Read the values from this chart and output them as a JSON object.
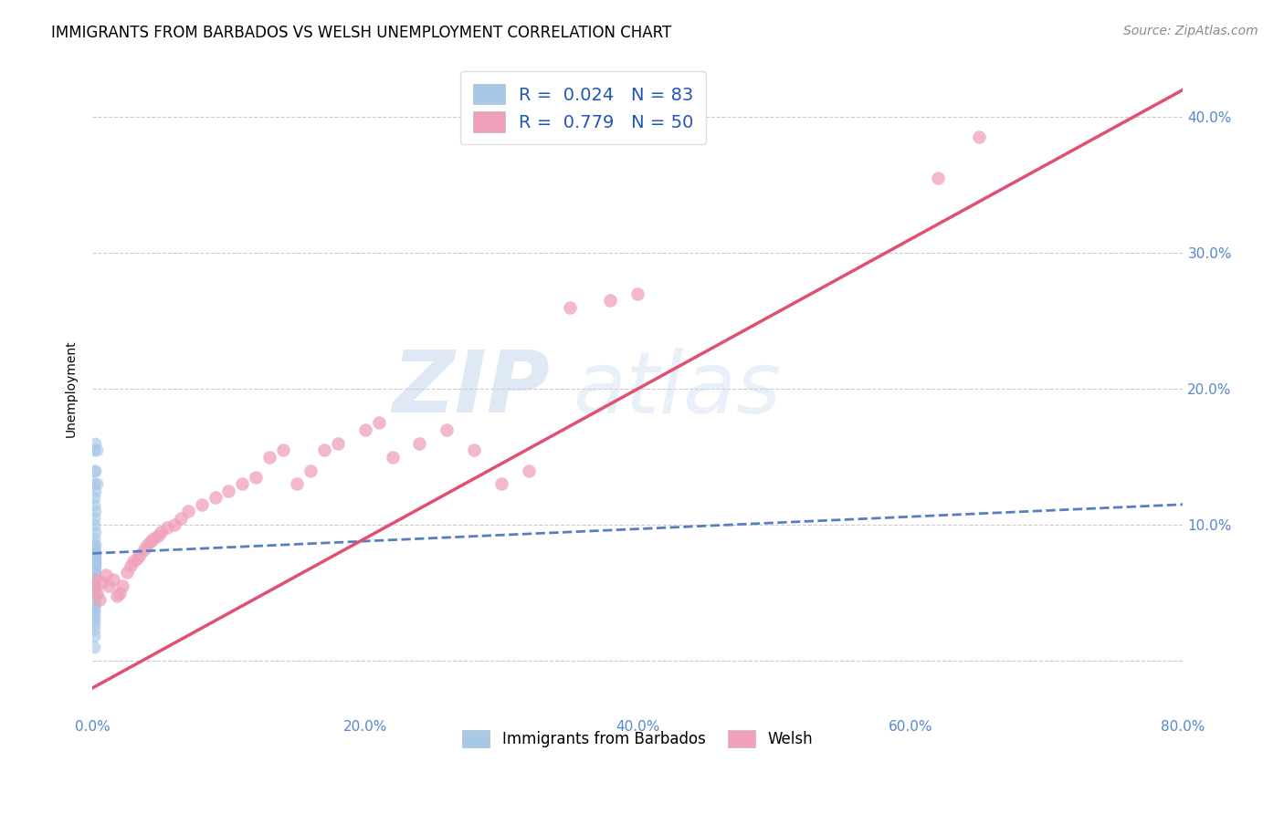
{
  "title": "IMMIGRANTS FROM BARBADOS VS WELSH UNEMPLOYMENT CORRELATION CHART",
  "source": "Source: ZipAtlas.com",
  "ylabel": "Unemployment",
  "watermark_zip": "ZIP",
  "watermark_atlas": "atlas",
  "legend": {
    "blue_R": "0.024",
    "blue_N": "83",
    "pink_R": "0.779",
    "pink_N": "50"
  },
  "legend_labels": [
    "Immigrants from Barbados",
    "Welsh"
  ],
  "blue_color": "#a8c8e8",
  "pink_color": "#f0a0b8",
  "blue_line_color": "#5580c0",
  "pink_line_color": "#e05070",
  "blue_scatter_x": [
    0.001,
    0.002,
    0.003,
    0.001,
    0.002,
    0.001,
    0.003,
    0.002,
    0.001,
    0.001,
    0.002,
    0.001,
    0.001,
    0.002,
    0.001,
    0.001,
    0.002,
    0.001,
    0.001,
    0.001,
    0.002,
    0.001,
    0.001,
    0.002,
    0.001,
    0.001,
    0.002,
    0.001,
    0.001,
    0.001,
    0.002,
    0.001,
    0.001,
    0.001,
    0.001,
    0.002,
    0.001,
    0.001,
    0.001,
    0.001,
    0.001,
    0.001,
    0.001,
    0.001,
    0.002,
    0.001,
    0.001,
    0.001,
    0.001,
    0.001,
    0.001,
    0.001,
    0.001,
    0.001,
    0.001,
    0.001,
    0.001,
    0.001,
    0.001,
    0.001,
    0.001,
    0.001,
    0.001,
    0.001,
    0.001,
    0.001,
    0.001,
    0.001,
    0.001,
    0.001,
    0.001,
    0.001,
    0.001,
    0.001,
    0.001,
    0.001,
    0.001,
    0.001,
    0.001,
    0.001,
    0.001,
    0.001,
    0.001
  ],
  "blue_scatter_y": [
    0.155,
    0.16,
    0.155,
    0.14,
    0.14,
    0.13,
    0.13,
    0.125,
    0.12,
    0.115,
    0.11,
    0.105,
    0.1,
    0.095,
    0.09,
    0.085,
    0.085,
    0.082,
    0.08,
    0.08,
    0.08,
    0.078,
    0.078,
    0.077,
    0.076,
    0.075,
    0.075,
    0.074,
    0.073,
    0.072,
    0.072,
    0.072,
    0.071,
    0.07,
    0.07,
    0.07,
    0.069,
    0.068,
    0.068,
    0.067,
    0.067,
    0.066,
    0.065,
    0.065,
    0.065,
    0.065,
    0.064,
    0.063,
    0.063,
    0.062,
    0.062,
    0.061,
    0.061,
    0.06,
    0.06,
    0.059,
    0.059,
    0.058,
    0.058,
    0.057,
    0.057,
    0.056,
    0.056,
    0.055,
    0.055,
    0.054,
    0.053,
    0.052,
    0.051,
    0.05,
    0.048,
    0.046,
    0.044,
    0.042,
    0.04,
    0.038,
    0.036,
    0.033,
    0.03,
    0.027,
    0.023,
    0.018,
    0.01
  ],
  "pink_scatter_x": [
    0.001,
    0.002,
    0.003,
    0.005,
    0.007,
    0.01,
    0.012,
    0.015,
    0.018,
    0.02,
    0.022,
    0.025,
    0.028,
    0.03,
    0.033,
    0.035,
    0.038,
    0.04,
    0.043,
    0.045,
    0.048,
    0.05,
    0.055,
    0.06,
    0.065,
    0.07,
    0.08,
    0.09,
    0.1,
    0.11,
    0.12,
    0.13,
    0.14,
    0.15,
    0.16,
    0.17,
    0.18,
    0.2,
    0.21,
    0.22,
    0.24,
    0.26,
    0.28,
    0.3,
    0.32,
    0.35,
    0.38,
    0.4,
    0.62,
    0.65
  ],
  "pink_scatter_y": [
    0.055,
    0.06,
    0.05,
    0.045,
    0.058,
    0.063,
    0.055,
    0.06,
    0.048,
    0.05,
    0.055,
    0.065,
    0.07,
    0.073,
    0.075,
    0.078,
    0.082,
    0.085,
    0.088,
    0.09,
    0.092,
    0.095,
    0.098,
    0.1,
    0.105,
    0.11,
    0.115,
    0.12,
    0.125,
    0.13,
    0.135,
    0.15,
    0.155,
    0.13,
    0.14,
    0.155,
    0.16,
    0.17,
    0.175,
    0.15,
    0.16,
    0.17,
    0.155,
    0.13,
    0.14,
    0.26,
    0.265,
    0.27,
    0.355,
    0.385
  ],
  "blue_trend_x": [
    0.0,
    0.8
  ],
  "blue_trend_y": [
    0.079,
    0.115
  ],
  "pink_trend_x": [
    0.0,
    0.8
  ],
  "pink_trend_y": [
    -0.02,
    0.42
  ],
  "xmin": 0.0,
  "xmax": 0.8,
  "ymin": -0.04,
  "ymax": 0.44,
  "ytick_vals": [
    0.0,
    0.1,
    0.2,
    0.3,
    0.4
  ],
  "ytick_labels_right": [
    "",
    "10.0%",
    "20.0%",
    "30.0%",
    "40.0%"
  ],
  "xtick_vals": [
    0.0,
    0.2,
    0.4,
    0.6,
    0.8
  ],
  "xtick_labels": [
    "0.0%",
    "20.0%",
    "40.0%",
    "60.0%",
    "80.0%"
  ],
  "grid_color": "#cccccc",
  "background_color": "#ffffff",
  "title_fontsize": 12,
  "label_fontsize": 10,
  "tick_fontsize": 11,
  "source_fontsize": 10,
  "legend_fontsize": 14,
  "tick_color": "#5588cc",
  "legend_text_color": "#2255bb"
}
